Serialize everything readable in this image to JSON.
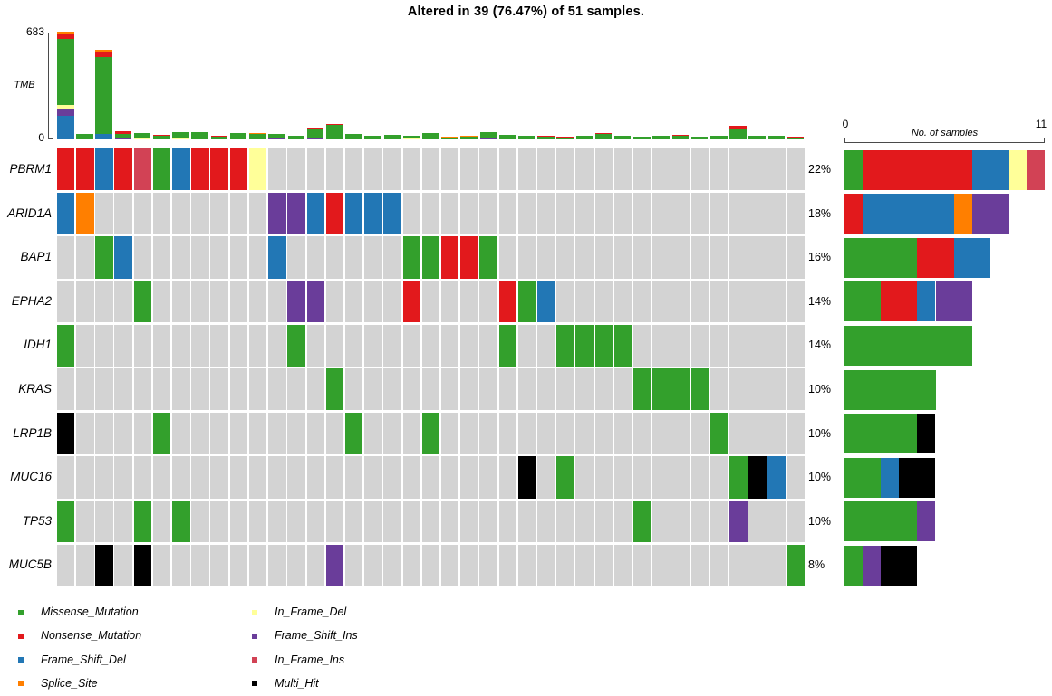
{
  "title": "Altered in 39 (76.47%) of 51 samples.",
  "tmb_axis": {
    "max_label": "683",
    "min_label": "0",
    "label": "TMB"
  },
  "sample_axis": {
    "min_label": "0",
    "max_label": "11",
    "label": "No. of samples"
  },
  "colors": {
    "Missense_Mutation": "#33A02C",
    "Nonsense_Mutation": "#E2191C",
    "Frame_Shift_Del": "#2277B5",
    "Splice_Site": "#FF7F00",
    "In_Frame_Del": "#FFFF99",
    "Frame_Shift_Ins": "#6A3D9A",
    "In_Frame_Ins": "#D24255",
    "Multi_Hit": "#000000",
    "background": "#D3D3D3",
    "axis": "#4a4a4a"
  },
  "legend": {
    "columns": [
      [
        {
          "key": "Missense_Mutation",
          "label": "Missense_Mutation"
        },
        {
          "key": "Nonsense_Mutation",
          "label": "Nonsense_Mutation"
        },
        {
          "key": "Frame_Shift_Del",
          "label": "Frame_Shift_Del"
        },
        {
          "key": "Splice_Site",
          "label": "Splice_Site"
        }
      ],
      [
        {
          "key": "In_Frame_Del",
          "label": "In_Frame_Del"
        },
        {
          "key": "Frame_Shift_Ins",
          "label": "Frame_Shift_Ins"
        },
        {
          "key": "In_Frame_Ins",
          "label": "In_Frame_Ins"
        },
        {
          "key": "Multi_Hit",
          "label": "Multi_Hit"
        }
      ]
    ]
  },
  "chart_data": {
    "type": "oncoplot",
    "title": "Altered in 39 (76.47%) of 51 samples.",
    "samples_total": 51,
    "samples_altered": 39,
    "n_columns": 39,
    "code_map": {
      "M": "Missense_Mutation",
      "N": "Nonsense_Mutation",
      "FD": "Frame_Shift_Del",
      "S": "Splice_Site",
      "ID": "In_Frame_Del",
      "FI": "Frame_Shift_Ins",
      "II": "In_Frame_Ins",
      "MH": "Multi_Hit"
    },
    "tmb": {
      "ylabel": "TMB",
      "ylim": [
        0,
        683
      ],
      "bars": [
        [
          [
            "FD",
            150
          ],
          [
            "FI",
            45
          ],
          [
            "ID",
            22
          ],
          [
            "M",
            420
          ],
          [
            "N",
            29
          ],
          [
            "S",
            17
          ]
        ],
        [
          [
            "M",
            37
          ]
        ],
        [
          [
            "FD",
            33
          ],
          [
            "M",
            488
          ],
          [
            "N",
            33
          ],
          [
            "S",
            16
          ]
        ],
        [
          [
            "FI",
            5
          ],
          [
            "M",
            32
          ],
          [
            "N",
            14
          ]
        ],
        [
          [
            "ID",
            5
          ],
          [
            "M",
            35
          ]
        ],
        [
          [
            "M",
            26
          ],
          [
            "N",
            4
          ]
        ],
        [
          [
            "ID",
            5
          ],
          [
            "M",
            39
          ]
        ],
        [
          [
            "M",
            44
          ]
        ],
        [
          [
            "M",
            20
          ],
          [
            "N",
            6
          ]
        ],
        [
          [
            "M",
            40
          ]
        ],
        [
          [
            "M",
            33
          ],
          [
            "S",
            4
          ]
        ],
        [
          [
            "FI",
            4
          ],
          [
            "M",
            29
          ]
        ],
        [
          [
            "M",
            22
          ]
        ],
        [
          [
            "FI",
            5
          ],
          [
            "M",
            57
          ],
          [
            "N",
            11
          ]
        ],
        [
          [
            "M",
            93
          ],
          [
            "N",
            7
          ]
        ],
        [
          [
            "M",
            37
          ]
        ],
        [
          [
            "M",
            26
          ]
        ],
        [
          [
            "M",
            29
          ]
        ],
        [
          [
            "ID",
            4
          ],
          [
            "M",
            22
          ]
        ],
        [
          [
            "M",
            40
          ]
        ],
        [
          [
            "M",
            14
          ],
          [
            "S",
            4
          ]
        ],
        [
          [
            "M",
            20
          ],
          [
            "S",
            6
          ]
        ],
        [
          [
            "FI",
            4
          ],
          [
            "M",
            40
          ]
        ],
        [
          [
            "M",
            29
          ]
        ],
        [
          [
            "M",
            26
          ]
        ],
        [
          [
            "M",
            15
          ],
          [
            "N",
            7
          ]
        ],
        [
          [
            "M",
            11
          ],
          [
            "N",
            5
          ]
        ],
        [
          [
            "M",
            26
          ]
        ],
        [
          [
            "M",
            36
          ],
          [
            "N",
            4
          ]
        ],
        [
          [
            "M",
            26
          ]
        ],
        [
          [
            "M",
            18
          ]
        ],
        [
          [
            "M",
            26
          ]
        ],
        [
          [
            "M",
            22
          ],
          [
            "N",
            7
          ]
        ],
        [
          [
            "FI",
            3
          ],
          [
            "M",
            12
          ]
        ],
        [
          [
            "FI",
            3
          ],
          [
            "M",
            19
          ]
        ],
        [
          [
            "M",
            70
          ],
          [
            "N",
            14
          ]
        ],
        [
          [
            "FI",
            3
          ],
          [
            "M",
            23
          ]
        ],
        [
          [
            "M",
            26
          ]
        ],
        [
          [
            "M",
            11
          ],
          [
            "N",
            4
          ]
        ]
      ]
    },
    "genes": [
      "PBRM1",
      "ARID1A",
      "BAP1",
      "EPHA2",
      "IDH1",
      "KRAS",
      "LRP1B",
      "MUC16",
      "TP53",
      "MUC5B"
    ],
    "percents": [
      "22%",
      "18%",
      "16%",
      "14%",
      "14%",
      "10%",
      "10%",
      "10%",
      "10%",
      "8%"
    ],
    "matrix": {
      "PBRM1": {
        "0": "N",
        "1": "N",
        "2": "FD",
        "3": "N",
        "4": "II",
        "5": "M",
        "6": "FD",
        "7": "N",
        "8": "N",
        "9": "N",
        "10": "ID"
      },
      "ARID1A": {
        "0": "FD",
        "1": "S",
        "11": "FI",
        "12": "FI",
        "13": "FD",
        "14": "N",
        "15": "FD",
        "16": "FD",
        "17": "FD"
      },
      "BAP1": {
        "2": "M",
        "3": "FD",
        "11": "FD",
        "18": "M",
        "19": "M",
        "20": "N",
        "21": "N",
        "22": "M"
      },
      "EPHA2": {
        "4": "M",
        "12": "FI",
        "13": "FI",
        "18": "N",
        "23": "N",
        "24": "M",
        "25": "FD"
      },
      "IDH1": {
        "0": "M",
        "12": "M",
        "23": "M",
        "26": "M",
        "27": "M",
        "28": "M",
        "29": "M"
      },
      "KRAS": {
        "14": "M",
        "30": "M",
        "31": "M",
        "32": "M",
        "33": "M"
      },
      "LRP1B": {
        "0": "MH",
        "5": "M",
        "15": "M",
        "19": "M",
        "34": "M"
      },
      "MUC16": {
        "24": "MH",
        "26": "M",
        "35": "M",
        "36": "MH",
        "37": "FD"
      },
      "TP53": {
        "0": "M",
        "4": "M",
        "6": "M",
        "30": "M",
        "35": "FI"
      },
      "MUC5B": {
        "2": "MH",
        "4": "MH",
        "14": "FI",
        "38": "M"
      }
    },
    "right_bars": {
      "xlabel": "No. of samples",
      "xlim": [
        0,
        11
      ],
      "PBRM1": [
        [
          "M",
          1
        ],
        [
          "N",
          6
        ],
        [
          "FD",
          2
        ],
        [
          "ID",
          1
        ],
        [
          "II",
          1
        ]
      ],
      "ARID1A": [
        [
          "N",
          1
        ],
        [
          "FD",
          5
        ],
        [
          "S",
          1
        ],
        [
          "FI",
          2
        ]
      ],
      "BAP1": [
        [
          "M",
          4
        ],
        [
          "N",
          2
        ],
        [
          "FD",
          2
        ]
      ],
      "EPHA2": [
        [
          "M",
          2
        ],
        [
          "N",
          2
        ],
        [
          "FD",
          1
        ],
        [
          "FI",
          2
        ]
      ],
      "IDH1": [
        [
          "M",
          7
        ]
      ],
      "KRAS": [
        [
          "M",
          5
        ]
      ],
      "LRP1B": [
        [
          "M",
          4
        ],
        [
          "MH",
          1
        ]
      ],
      "MUC16": [
        [
          "M",
          2
        ],
        [
          "FD",
          1
        ],
        [
          "MH",
          2
        ]
      ],
      "TP53": [
        [
          "M",
          4
        ],
        [
          "FI",
          1
        ]
      ],
      "MUC5B": [
        [
          "M",
          1
        ],
        [
          "FI",
          1
        ],
        [
          "MH",
          2
        ]
      ]
    }
  }
}
